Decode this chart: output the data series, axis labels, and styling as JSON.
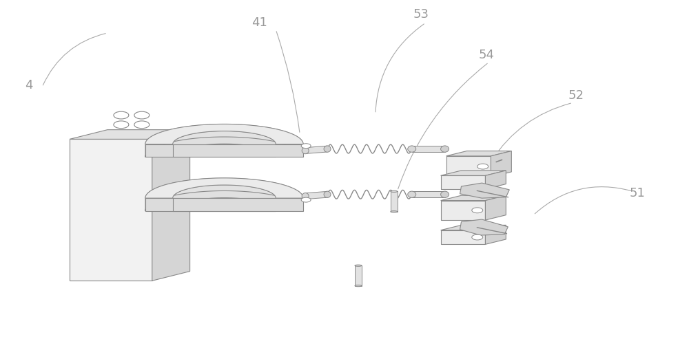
{
  "bg_color": "#ffffff",
  "line_color": "#aaaaaa",
  "dark_line": "#888888",
  "label_color": "#999999",
  "fig_width": 10.0,
  "fig_height": 4.93,
  "dpi": 100
}
